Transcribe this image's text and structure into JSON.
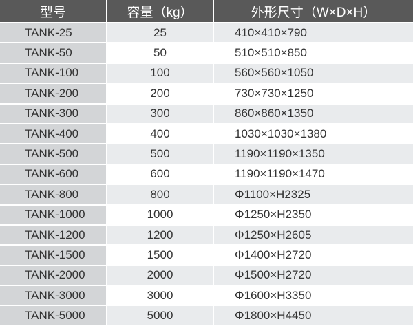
{
  "headers": [
    "型号",
    "容量（kg）",
    "外形尺寸（W×D×H）"
  ],
  "rows": [
    [
      "TANK-25",
      "25",
      "410×410×790"
    ],
    [
      "TANK-50",
      "50",
      "510×510×850"
    ],
    [
      "TANK-100",
      "100",
      "560×560×1050"
    ],
    [
      "TANK-200",
      "200",
      "730×730×1250"
    ],
    [
      "TANK-300",
      "300",
      "860×860×1350"
    ],
    [
      "TANK-400",
      "400",
      "1030×1030×1380"
    ],
    [
      "TANK-500",
      "500",
      "1190×1190×1350"
    ],
    [
      "TANK-600",
      "600",
      "1190×1190×1470"
    ],
    [
      "TANK-800",
      "800",
      "Φ1100×H2325"
    ],
    [
      "TANK-1000",
      "1000",
      "Φ1250×H2350"
    ],
    [
      "TANK-1200",
      "1200",
      "Φ1250×H2605"
    ],
    [
      "TANK-1500",
      "1500",
      "Φ1400×H2720"
    ],
    [
      "TANK-2000",
      "2000",
      "Φ1500×H2720"
    ],
    [
      "TANK-3000",
      "3000",
      "Φ1600×H3350"
    ],
    [
      "TANK-5000",
      "5000",
      "Φ1800×H4450"
    ]
  ]
}
